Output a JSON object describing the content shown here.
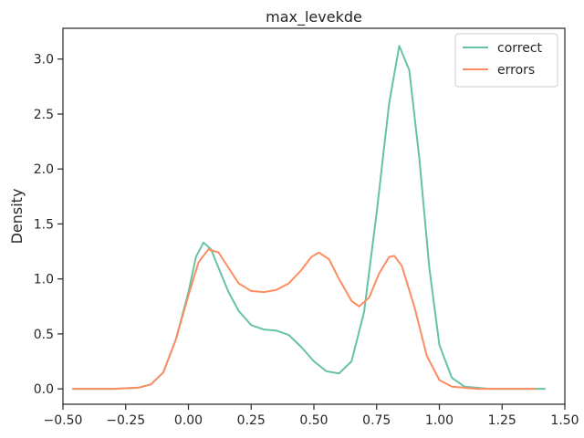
{
  "chart_data": {
    "type": "line",
    "title": "max_levekde",
    "xlabel": "",
    "ylabel": "Density",
    "xlim": [
      -0.5,
      1.5
    ],
    "ylim": [
      -0.14,
      3.28
    ],
    "xticks": [
      -0.5,
      -0.25,
      0.0,
      0.25,
      0.5,
      0.75,
      1.0,
      1.25,
      1.5
    ],
    "xtick_labels": [
      "−0.50",
      "−0.25",
      "0.00",
      "0.25",
      "0.50",
      "0.75",
      "1.00",
      "1.25",
      "1.50"
    ],
    "yticks": [
      0.0,
      0.5,
      1.0,
      1.5,
      2.0,
      2.5,
      3.0
    ],
    "ytick_labels": [
      "0.0",
      "0.5",
      "1.0",
      "1.5",
      "2.0",
      "2.5",
      "3.0"
    ],
    "grid": false,
    "legend_position": "top-right",
    "series": [
      {
        "name": "correct",
        "color": "#66c2a5",
        "points": [
          [
            -0.46,
            0.0
          ],
          [
            -0.3,
            0.0
          ],
          [
            -0.2,
            0.01
          ],
          [
            -0.15,
            0.04
          ],
          [
            -0.1,
            0.15
          ],
          [
            -0.05,
            0.45
          ],
          [
            0.0,
            0.88
          ],
          [
            0.03,
            1.2
          ],
          [
            0.06,
            1.33
          ],
          [
            0.09,
            1.27
          ],
          [
            0.12,
            1.1
          ],
          [
            0.16,
            0.88
          ],
          [
            0.2,
            0.71
          ],
          [
            0.25,
            0.58
          ],
          [
            0.3,
            0.54
          ],
          [
            0.35,
            0.53
          ],
          [
            0.4,
            0.49
          ],
          [
            0.45,
            0.38
          ],
          [
            0.5,
            0.25
          ],
          [
            0.55,
            0.16
          ],
          [
            0.6,
            0.14
          ],
          [
            0.65,
            0.25
          ],
          [
            0.7,
            0.7
          ],
          [
            0.75,
            1.6
          ],
          [
            0.8,
            2.6
          ],
          [
            0.84,
            3.12
          ],
          [
            0.88,
            2.9
          ],
          [
            0.92,
            2.1
          ],
          [
            0.96,
            1.1
          ],
          [
            1.0,
            0.4
          ],
          [
            1.05,
            0.1
          ],
          [
            1.1,
            0.02
          ],
          [
            1.2,
            0.0
          ],
          [
            1.42,
            0.0
          ]
        ]
      },
      {
        "name": "errors",
        "color": "#fc8d62",
        "points": [
          [
            -0.46,
            0.0
          ],
          [
            -0.3,
            0.0
          ],
          [
            -0.2,
            0.01
          ],
          [
            -0.15,
            0.04
          ],
          [
            -0.1,
            0.15
          ],
          [
            -0.05,
            0.45
          ],
          [
            0.0,
            0.85
          ],
          [
            0.04,
            1.15
          ],
          [
            0.08,
            1.27
          ],
          [
            0.12,
            1.24
          ],
          [
            0.16,
            1.1
          ],
          [
            0.2,
            0.96
          ],
          [
            0.25,
            0.89
          ],
          [
            0.3,
            0.88
          ],
          [
            0.35,
            0.9
          ],
          [
            0.4,
            0.96
          ],
          [
            0.45,
            1.08
          ],
          [
            0.49,
            1.2
          ],
          [
            0.52,
            1.24
          ],
          [
            0.56,
            1.18
          ],
          [
            0.6,
            1.0
          ],
          [
            0.65,
            0.8
          ],
          [
            0.68,
            0.75
          ],
          [
            0.72,
            0.83
          ],
          [
            0.76,
            1.05
          ],
          [
            0.8,
            1.2
          ],
          [
            0.82,
            1.21
          ],
          [
            0.85,
            1.12
          ],
          [
            0.9,
            0.75
          ],
          [
            0.95,
            0.3
          ],
          [
            1.0,
            0.08
          ],
          [
            1.05,
            0.02
          ],
          [
            1.15,
            0.0
          ],
          [
            1.38,
            0.0
          ]
        ]
      }
    ]
  }
}
